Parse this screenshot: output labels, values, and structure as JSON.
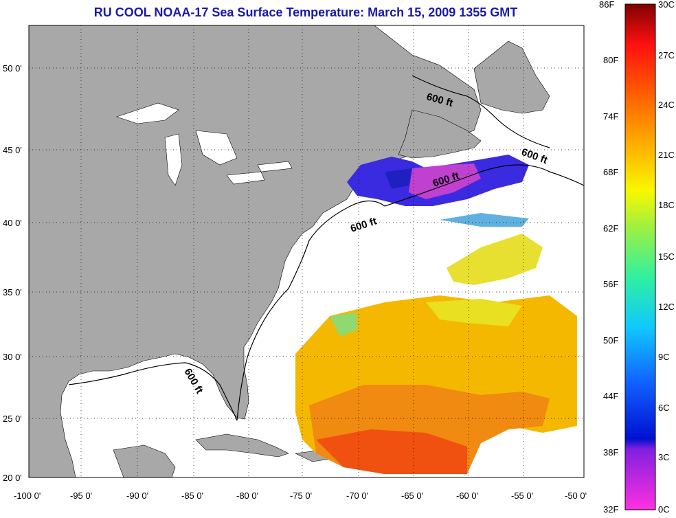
{
  "title": "RU COOL  NOAA-17  Sea Surface Temperature:  March 15, 2009 1355 GMT",
  "axes": {
    "lat_labels": [
      "50 0'",
      "45 0'",
      "40 0'",
      "35 0'",
      "30 0'",
      "25 0'",
      "20 0'"
    ],
    "lon_labels": [
      "-100 0'",
      "-95 0'",
      "-90 0'",
      "-85 0'",
      "-80 0'",
      "-75 0'",
      "-70 0'",
      "-65 0'",
      "-60 0'",
      "-55 0'",
      "-50 0'"
    ]
  },
  "contour_labels": [
    "600 ft",
    "600 ft",
    "600 ft",
    "600 ft",
    "600 ft"
  ],
  "colorbar": {
    "fahrenheit": [
      "86F",
      "80F",
      "74F",
      "68F",
      "62F",
      "56F",
      "50F",
      "44F",
      "38F",
      "32F"
    ],
    "celsius": [
      "30C",
      "27C",
      "24C",
      "21C",
      "18C",
      "15C",
      "12C",
      "9C",
      "6C",
      "3C",
      "0C"
    ],
    "range_c": [
      0,
      30
    ]
  },
  "colors": {
    "land": "#a8a8a8",
    "ocean": "#ffffff",
    "title": "#1818b0",
    "warm": "#ff6a00",
    "mid": "#f0c000",
    "cold": "#1010e0"
  }
}
